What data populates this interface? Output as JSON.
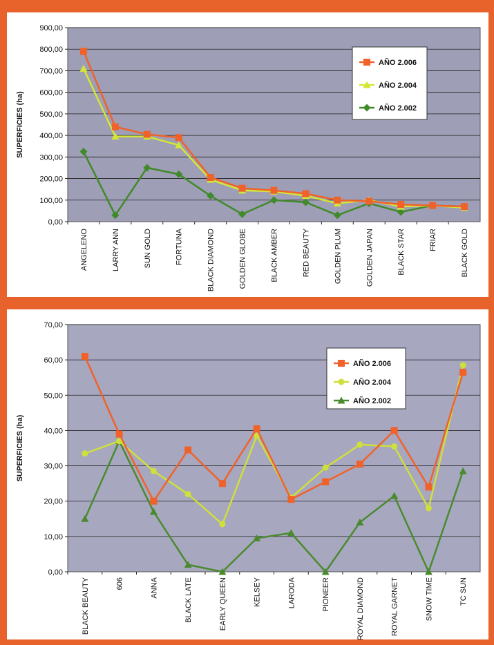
{
  "chart_data": [
    {
      "type": "line",
      "title": "",
      "xlabel": "",
      "ylabel": "SUPERFICIES (ha)",
      "ylim": [
        0,
        900
      ],
      "ytick_step": 100,
      "ytick_labels": [
        "0,00",
        "100,00",
        "200,00",
        "300,00",
        "400,00",
        "500,00",
        "600,00",
        "700,00",
        "800,00",
        "900,00"
      ],
      "grid": true,
      "legend_position": "top-right",
      "plot_background": "#9e9eb6",
      "categories": [
        "ANGELENO",
        "LARRY ANN",
        "SUN GOLD",
        "FORTUNA",
        "BLACK DIAMOND",
        "GOLDEN GLOBE",
        "BLACK AMBER",
        "RED BEAUTY",
        "GOLDEN PLUM",
        "GOLDEN JAPAN",
        "BLACK STAR",
        "FRIAR",
        "BLACK GOLD"
      ],
      "series": [
        {
          "name": "AÑO 2.006",
          "color": "#f0622a",
          "marker": "square",
          "values": [
            790,
            440,
            405,
            390,
            205,
            155,
            145,
            130,
            100,
            95,
            80,
            75,
            70
          ]
        },
        {
          "name": "AÑO 2.004",
          "color": "#d4e635",
          "marker": "triangle",
          "values": [
            710,
            395,
            395,
            355,
            195,
            145,
            140,
            120,
            85,
            100,
            70,
            75,
            65
          ]
        },
        {
          "name": "AÑO 2.002",
          "color": "#3f8a2a",
          "marker": "diamond",
          "values": [
            325,
            30,
            250,
            220,
            120,
            35,
            100,
            90,
            30,
            85,
            45,
            75,
            70
          ]
        }
      ]
    },
    {
      "type": "line",
      "title": "",
      "xlabel": "",
      "ylabel": "SUPERFICIES (ha)",
      "ylim": [
        0,
        70
      ],
      "ytick_step": 10,
      "ytick_labels": [
        "0,00",
        "10,00",
        "20,00",
        "30,00",
        "40,00",
        "50,00",
        "60,00",
        "70,00"
      ],
      "grid": true,
      "legend_position": "top-right",
      "plot_background": "#a7a7bf",
      "categories": [
        "BLACK BEAUTY",
        "606",
        "ANNA",
        "BLACK LATE",
        "EARLY QUEEN",
        "KELSEY",
        "LARODA",
        "PIONEER",
        "ROYAL DIAMOND",
        "ROYAL GARNET",
        "SNOW TIME",
        "TC SUN"
      ],
      "series": [
        {
          "name": "AÑO 2.006",
          "color": "#f0622a",
          "marker": "square",
          "values": [
            61,
            39,
            20,
            34.5,
            25,
            40.5,
            20.5,
            25.5,
            30.5,
            40,
            24,
            56.5
          ]
        },
        {
          "name": "AÑO 2.004",
          "color": "#cfe03a",
          "marker": "circle",
          "values": [
            33.5,
            37,
            28.5,
            22,
            13.5,
            38.5,
            21,
            29.5,
            36,
            35.5,
            18,
            58.5
          ]
        },
        {
          "name": "AÑO 2.002",
          "color": "#4a8a2e",
          "marker": "triangle",
          "values": [
            15,
            37,
            17,
            2,
            0,
            9.5,
            11,
            0,
            14,
            21.5,
            0,
            28.5
          ]
        }
      ]
    }
  ]
}
